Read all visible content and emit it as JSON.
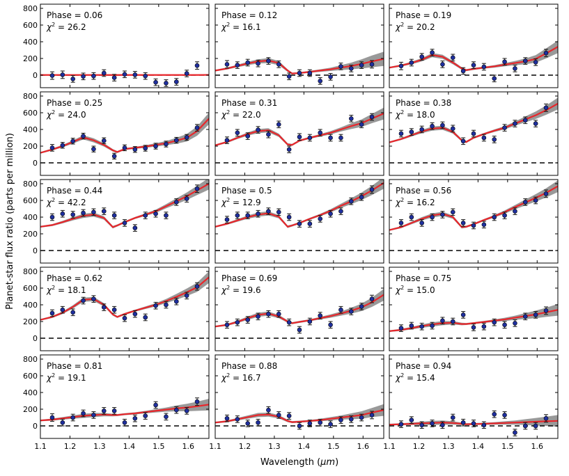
{
  "figure": {
    "xlabel_prefix": "Wavelength (",
    "xlabel_unit": "μm",
    "xlabel_suffix": ")",
    "ylabel": "Planet-star flux ratio (parts per million)"
  },
  "colors": {
    "model": "#e8262b",
    "band": "#999999",
    "point": "#1f2f9e",
    "zero": "#000000"
  },
  "chart_data": {
    "type": "line",
    "layout": "5x3 panel grid",
    "x_range": [
      1.1,
      1.67
    ],
    "y_range": [
      -150,
      850
    ],
    "x_ticks": [
      "1.1",
      "1.2",
      "1.3",
      "1.4",
      "1.5",
      "1.6"
    ],
    "y_ticks": [
      "0",
      "200",
      "400",
      "600",
      "800"
    ],
    "x_tick_values": [
      1.1,
      1.2,
      1.3,
      1.4,
      1.5,
      1.6
    ],
    "y_tick_values": [
      0,
      200,
      400,
      600,
      800
    ],
    "wavelengths": [
      1.14,
      1.175,
      1.21,
      1.245,
      1.28,
      1.315,
      1.35,
      1.385,
      1.42,
      1.455,
      1.49,
      1.525,
      1.56,
      1.595,
      1.63
    ],
    "model_x": [
      1.1,
      1.14,
      1.175,
      1.21,
      1.245,
      1.28,
      1.315,
      1.345,
      1.36,
      1.385,
      1.42,
      1.455,
      1.49,
      1.525,
      1.56,
      1.595,
      1.63,
      1.67
    ],
    "panels": [
      {
        "phase_label": "Phase = 0.06",
        "chi_label": "26.2",
        "y": [
          -5,
          5,
          -45,
          -15,
          -10,
          25,
          -30,
          10,
          5,
          -10,
          -85,
          -95,
          -80,
          20,
          115
        ],
        "yerr": [
          45,
          45,
          40,
          40,
          40,
          40,
          40,
          40,
          40,
          40,
          40,
          40,
          40,
          40,
          45
        ],
        "model": [
          2,
          2,
          2,
          2,
          2,
          2,
          2,
          2,
          2,
          2,
          2,
          2,
          2,
          2,
          2,
          2,
          2,
          3
        ],
        "band": [
          5,
          5,
          5,
          5,
          5,
          5,
          5,
          5,
          5,
          5,
          5,
          5,
          5,
          5,
          5,
          5,
          5,
          5
        ]
      },
      {
        "phase_label": "Phase = 0.12",
        "chi_label": "16.1",
        "y": [
          130,
          120,
          150,
          140,
          170,
          130,
          -15,
          25,
          25,
          -70,
          -20,
          105,
          80,
          120,
          130
        ],
        "yerr": [
          45,
          40,
          40,
          40,
          40,
          40,
          40,
          40,
          40,
          40,
          40,
          40,
          40,
          40,
          45
        ],
        "model": [
          55,
          80,
          110,
          140,
          165,
          175,
          145,
          55,
          20,
          25,
          40,
          55,
          70,
          90,
          110,
          135,
          165,
          195
        ],
        "band": [
          10,
          12,
          15,
          20,
          25,
          30,
          25,
          15,
          10,
          10,
          12,
          15,
          20,
          30,
          40,
          55,
          70,
          85
        ]
      },
      {
        "phase_label": "Phase = 0.19",
        "chi_label": "20.2",
        "y": [
          110,
          150,
          220,
          270,
          130,
          210,
          50,
          120,
          100,
          -40,
          160,
          80,
          170,
          155,
          265
        ],
        "yerr": [
          45,
          40,
          40,
          40,
          40,
          40,
          40,
          40,
          40,
          40,
          40,
          40,
          40,
          40,
          45
        ],
        "model": [
          90,
          115,
          145,
          185,
          240,
          220,
          150,
          80,
          60,
          75,
          90,
          105,
          125,
          145,
          165,
          195,
          260,
          340
        ],
        "band": [
          10,
          12,
          15,
          20,
          25,
          25,
          20,
          15,
          12,
          12,
          12,
          15,
          20,
          25,
          35,
          45,
          60,
          75
        ]
      },
      {
        "phase_label": "Phase = 0.25",
        "chi_label": "24.0",
        "y": [
          180,
          210,
          260,
          320,
          165,
          265,
          80,
          180,
          160,
          175,
          200,
          225,
          270,
          305,
          420
        ],
        "yerr": [
          40,
          35,
          35,
          35,
          35,
          35,
          35,
          35,
          35,
          35,
          35,
          35,
          35,
          35,
          40
        ],
        "model": [
          120,
          160,
          200,
          250,
          305,
          270,
          215,
          150,
          130,
          165,
          180,
          195,
          215,
          235,
          265,
          300,
          380,
          530
        ],
        "band": [
          10,
          12,
          15,
          20,
          25,
          25,
          20,
          15,
          12,
          12,
          12,
          15,
          20,
          25,
          35,
          45,
          55,
          70
        ]
      },
      {
        "phase_label": "Phase = 0.31",
        "chi_label": "22.0",
        "y": [
          270,
          360,
          320,
          395,
          340,
          460,
          160,
          310,
          300,
          360,
          300,
          300,
          530,
          460,
          550
        ],
        "yerr": [
          40,
          40,
          40,
          40,
          40,
          40,
          40,
          40,
          40,
          40,
          40,
          40,
          40,
          40,
          40
        ],
        "model": [
          210,
          250,
          300,
          345,
          380,
          390,
          330,
          220,
          215,
          265,
          300,
          330,
          360,
          400,
          440,
          475,
          530,
          590
        ],
        "band": [
          10,
          12,
          15,
          20,
          25,
          25,
          20,
          15,
          12,
          12,
          12,
          15,
          20,
          25,
          35,
          45,
          55,
          70
        ]
      },
      {
        "phase_label": "Phase = 0.38",
        "chi_label": "18.0",
        "y": [
          350,
          370,
          400,
          440,
          450,
          410,
          260,
          350,
          300,
          280,
          420,
          470,
          510,
          470,
          660
        ],
        "yerr": [
          40,
          40,
          40,
          40,
          40,
          40,
          40,
          40,
          40,
          40,
          40,
          40,
          40,
          40,
          45
        ],
        "model": [
          245,
          285,
          330,
          375,
          410,
          420,
          370,
          270,
          250,
          300,
          345,
          385,
          420,
          470,
          520,
          570,
          630,
          710
        ],
        "band": [
          10,
          12,
          15,
          20,
          25,
          25,
          20,
          15,
          12,
          12,
          12,
          15,
          20,
          25,
          35,
          45,
          55,
          70
        ]
      },
      {
        "phase_label": "Phase = 0.44",
        "chi_label": "42.2",
        "y": [
          400,
          440,
          430,
          450,
          460,
          470,
          420,
          330,
          270,
          420,
          440,
          420,
          580,
          620,
          740
        ],
        "yerr": [
          40,
          40,
          40,
          40,
          40,
          40,
          40,
          40,
          40,
          40,
          40,
          40,
          40,
          40,
          45
        ],
        "model": [
          285,
          305,
          340,
          380,
          415,
          430,
          390,
          280,
          300,
          340,
          390,
          430,
          470,
          530,
          590,
          650,
          720,
          800
        ],
        "band": [
          10,
          12,
          15,
          20,
          25,
          25,
          20,
          15,
          12,
          12,
          12,
          15,
          20,
          25,
          35,
          45,
          55,
          70
        ]
      },
      {
        "phase_label": "Phase = 0.5",
        "chi_label": "12.9",
        "y": [
          370,
          420,
          420,
          440,
          470,
          460,
          400,
          320,
          320,
          380,
          440,
          470,
          590,
          640,
          730
        ],
        "yerr": [
          40,
          40,
          40,
          40,
          40,
          40,
          40,
          40,
          40,
          40,
          40,
          40,
          40,
          40,
          45
        ],
        "model": [
          285,
          320,
          360,
          400,
          430,
          445,
          405,
          285,
          300,
          330,
          380,
          425,
          475,
          535,
          590,
          650,
          720,
          810
        ],
        "band": [
          10,
          12,
          15,
          20,
          25,
          25,
          20,
          15,
          12,
          12,
          12,
          15,
          20,
          25,
          35,
          45,
          55,
          70
        ]
      },
      {
        "phase_label": "Phase = 0.56",
        "chi_label": "16.2",
        "y": [
          330,
          400,
          330,
          400,
          430,
          460,
          330,
          300,
          310,
          400,
          420,
          470,
          580,
          600,
          680
        ],
        "yerr": [
          40,
          40,
          40,
          40,
          40,
          40,
          40,
          40,
          40,
          40,
          40,
          40,
          40,
          40,
          45
        ],
        "model": [
          245,
          280,
          330,
          380,
          420,
          440,
          400,
          280,
          285,
          315,
          365,
          410,
          460,
          520,
          575,
          630,
          690,
          770
        ],
        "band": [
          10,
          12,
          15,
          20,
          25,
          25,
          20,
          15,
          12,
          12,
          12,
          15,
          20,
          25,
          35,
          45,
          55,
          70
        ]
      },
      {
        "phase_label": "Phase = 0.62",
        "chi_label": "18.1",
        "y": [
          300,
          340,
          310,
          450,
          470,
          370,
          340,
          240,
          290,
          250,
          390,
          400,
          440,
          510,
          620
        ],
        "yerr": [
          40,
          40,
          40,
          40,
          40,
          40,
          40,
          40,
          40,
          40,
          40,
          40,
          40,
          40,
          45
        ],
        "model": [
          220,
          255,
          305,
          375,
          460,
          470,
          400,
          285,
          255,
          290,
          330,
          365,
          400,
          445,
          495,
          550,
          610,
          730
        ],
        "band": [
          10,
          12,
          15,
          20,
          25,
          25,
          20,
          15,
          12,
          12,
          12,
          15,
          20,
          25,
          35,
          45,
          55,
          70
        ]
      },
      {
        "phase_label": "Phase = 0.69",
        "chi_label": "19.6",
        "y": [
          160,
          190,
          220,
          260,
          290,
          290,
          190,
          100,
          200,
          270,
          160,
          340,
          320,
          380,
          470
        ],
        "yerr": [
          40,
          40,
          40,
          40,
          40,
          40,
          40,
          40,
          40,
          40,
          40,
          40,
          40,
          40,
          45
        ],
        "model": [
          140,
          160,
          195,
          240,
          280,
          295,
          260,
          200,
          180,
          195,
          215,
          240,
          265,
          295,
          330,
          370,
          430,
          520
        ],
        "band": [
          10,
          12,
          15,
          20,
          25,
          25,
          20,
          15,
          12,
          12,
          12,
          15,
          20,
          25,
          35,
          45,
          55,
          70
        ]
      },
      {
        "phase_label": "Phase = 0.75",
        "chi_label": "15.0",
        "y": [
          120,
          150,
          140,
          150,
          210,
          200,
          280,
          130,
          140,
          190,
          160,
          180,
          260,
          280,
          330
        ],
        "yerr": [
          40,
          40,
          40,
          40,
          40,
          40,
          40,
          40,
          40,
          40,
          40,
          40,
          40,
          40,
          45
        ],
        "model": [
          85,
          100,
          120,
          145,
          165,
          180,
          185,
          170,
          170,
          180,
          195,
          210,
          225,
          245,
          265,
          285,
          310,
          340
        ],
        "band": [
          10,
          12,
          15,
          20,
          25,
          25,
          20,
          15,
          12,
          12,
          12,
          15,
          20,
          25,
          35,
          45,
          55,
          70
        ]
      },
      {
        "phase_label": "Phase = 0.81",
        "chi_label": "19.1",
        "y": [
          100,
          40,
          100,
          150,
          130,
          180,
          180,
          40,
          90,
          120,
          250,
          110,
          190,
          180,
          290
        ],
        "yerr": [
          45,
          40,
          40,
          40,
          40,
          40,
          40,
          40,
          40,
          40,
          40,
          40,
          40,
          40,
          45
        ],
        "model": [
          65,
          75,
          90,
          105,
          120,
          130,
          135,
          130,
          130,
          140,
          150,
          165,
          180,
          195,
          210,
          220,
          235,
          255
        ],
        "band": [
          10,
          12,
          15,
          20,
          25,
          25,
          20,
          15,
          12,
          12,
          12,
          15,
          20,
          25,
          35,
          45,
          55,
          70
        ]
      },
      {
        "phase_label": "Phase = 0.88",
        "chi_label": "16.7",
        "y": [
          90,
          80,
          30,
          40,
          190,
          130,
          120,
          0,
          30,
          40,
          20,
          70,
          80,
          100,
          130
        ],
        "yerr": [
          40,
          40,
          40,
          40,
          40,
          40,
          40,
          40,
          40,
          40,
          40,
          40,
          40,
          40,
          45
        ],
        "model": [
          40,
          55,
          80,
          105,
          130,
          135,
          110,
          60,
          45,
          50,
          60,
          70,
          85,
          100,
          115,
          130,
          160,
          190
        ],
        "band": [
          10,
          12,
          15,
          20,
          25,
          25,
          20,
          15,
          12,
          12,
          12,
          15,
          20,
          25,
          35,
          45,
          55,
          70
        ]
      },
      {
        "phase_label": "Phase = 0.94",
        "chi_label": "15.4",
        "y": [
          20,
          70,
          10,
          30,
          10,
          100,
          40,
          30,
          10,
          140,
          130,
          -80,
          0,
          0,
          90
        ],
        "yerr": [
          40,
          40,
          40,
          40,
          40,
          40,
          40,
          40,
          40,
          40,
          40,
          40,
          40,
          40,
          45
        ],
        "model": [
          15,
          20,
          25,
          30,
          35,
          40,
          35,
          25,
          20,
          22,
          25,
          30,
          35,
          40,
          45,
          50,
          55,
          60
        ],
        "band": [
          10,
          12,
          15,
          20,
          25,
          25,
          20,
          15,
          12,
          12,
          12,
          15,
          20,
          25,
          35,
          45,
          55,
          70
        ]
      }
    ]
  }
}
